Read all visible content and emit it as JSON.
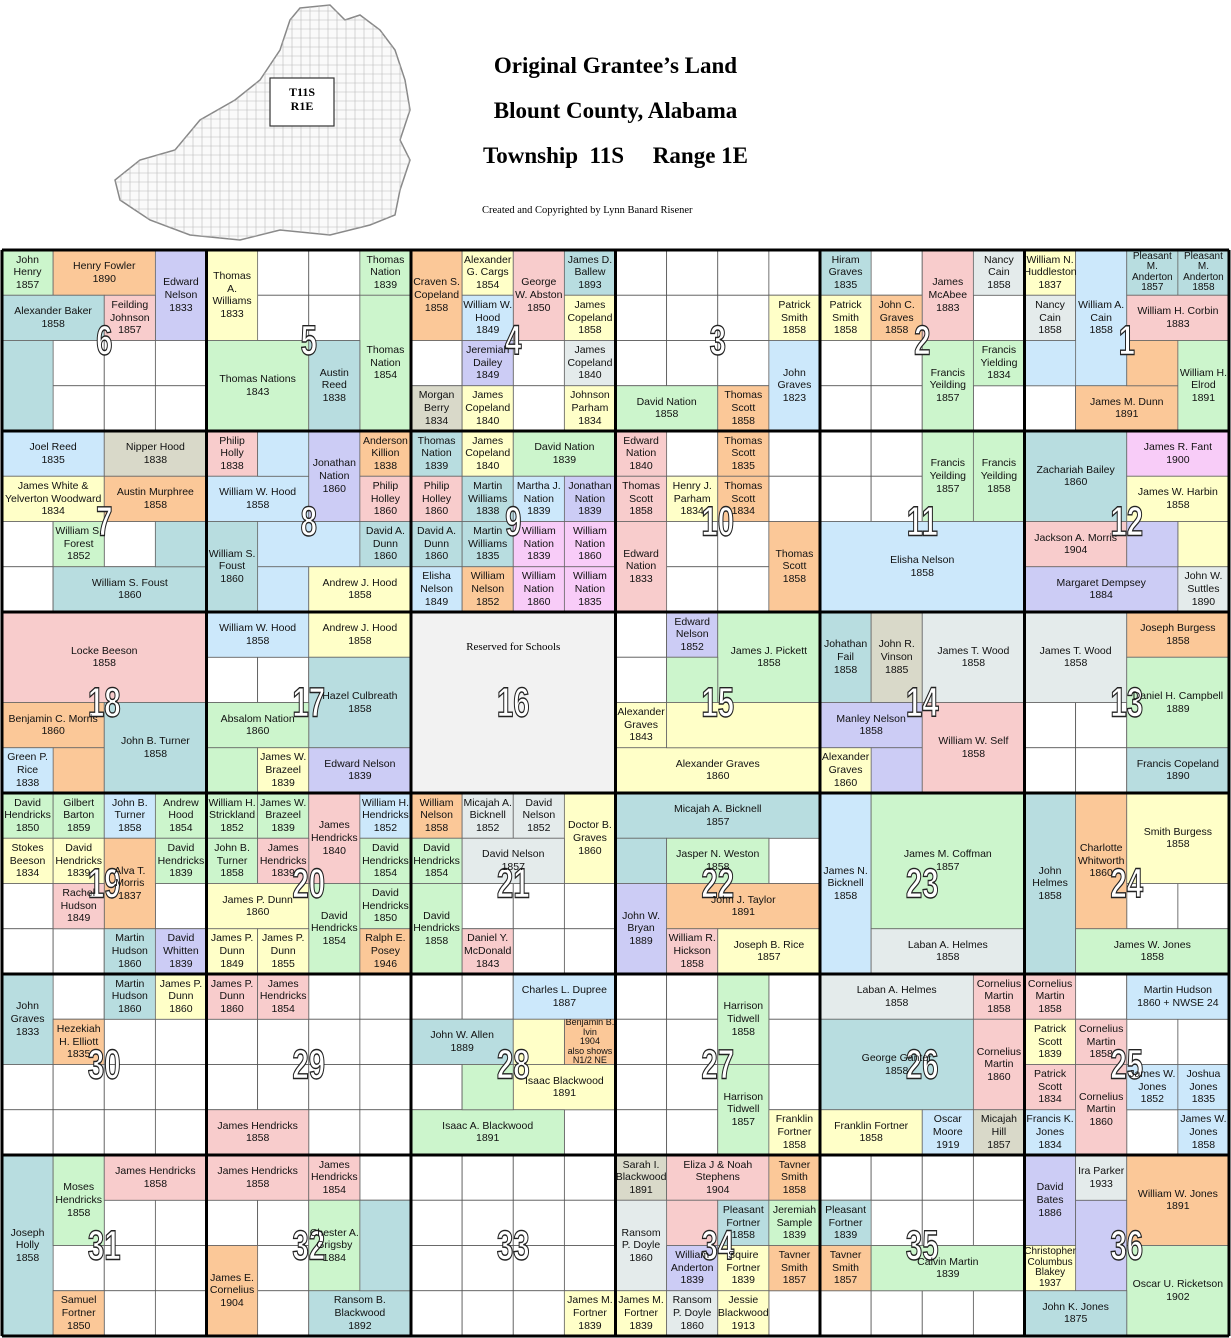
{
  "header": {
    "title_lines": [
      "Original Grantee’s Land",
      "Blount County, Alabama",
      "Township  11S     Range 1E"
    ],
    "credit": "Created and Copyrighted by Lynn Banard Risener",
    "inset_label": [
      "T11S",
      "R1E"
    ]
  },
  "sections": [
    6,
    5,
    4,
    3,
    2,
    1,
    7,
    8,
    9,
    10,
    11,
    12,
    18,
    17,
    16,
    15,
    14,
    13,
    19,
    20,
    21,
    22,
    23,
    24,
    30,
    29,
    28,
    27,
    26,
    25,
    31,
    32,
    33,
    34,
    35,
    36
  ],
  "school_note": "Reserved for Schools",
  "parcels": [
    [
      "John Henry",
      "1857"
    ],
    [
      "Henry Fowler",
      "1890"
    ],
    [
      "Edward Nelson",
      "1833"
    ],
    [
      "Alexander Baker",
      "1858"
    ],
    [
      "Feilding Johnson",
      "1857"
    ],
    [
      "Thomas A. Williams",
      "1833"
    ],
    [
      "Thomas Nation",
      "1839"
    ],
    [
      "Thomas Nation",
      "1854"
    ],
    [
      "Thomas Nations",
      "1843"
    ],
    [
      "Austin Reed",
      "1838"
    ],
    [
      "Craven S. Copeland",
      "1858"
    ],
    [
      "Alexander G. Cargs",
      "1854"
    ],
    [
      "George W. Abston",
      "1850"
    ],
    [
      "James D. Ballew",
      "1893"
    ],
    [
      "William W. Hood",
      "1849"
    ],
    [
      "James Copeland",
      "1858"
    ],
    [
      "Jeremiah Dailey",
      "1849"
    ],
    [
      "James Copeland",
      "1840"
    ],
    [
      "Morgan Berry",
      "1834"
    ],
    [
      "James Copeland",
      "1840"
    ],
    [
      "Johnson Parham",
      "1834"
    ],
    [
      "David Nation",
      "1858"
    ],
    [
      "Thomas Scott",
      "1858"
    ],
    [
      "Patrick Smith",
      "1858"
    ],
    [
      "John Graves",
      "1823"
    ],
    [
      "Hiram Graves",
      "1835"
    ],
    [
      "Patrick Smith",
      "1858"
    ],
    [
      "John C. Graves",
      "1858"
    ],
    [
      "James McAbee",
      "1883"
    ],
    [
      "Nancy Cain",
      "1858"
    ],
    [
      "Francis Yeilding",
      "1857"
    ],
    [
      "Francis Yielding",
      "1834"
    ],
    [
      "William N. Huddleston",
      "1837"
    ],
    [
      "Nancy Cain",
      "1858"
    ],
    [
      "William A. Cain",
      "1858"
    ],
    [
      "Pleasant M. Anderton",
      "1857"
    ],
    [
      "Pleasant M. Anderton",
      "1858"
    ],
    [
      "William H. Corbin",
      "1883"
    ],
    [
      "James M. Dunn",
      "1891"
    ],
    [
      "William H. Elrod",
      "1891"
    ],
    [
      "Joel Reed",
      "1835"
    ],
    [
      "Nipper Hood",
      "1838"
    ],
    [
      "James White & Yelverton Woodward",
      "1834"
    ],
    [
      "Austin Murphree",
      "1858"
    ],
    [
      "William S. Forest",
      "1852"
    ],
    [
      "William S. Foust",
      "1860"
    ],
    [
      "Philip Holly",
      "1838"
    ],
    [
      "William W. Hood",
      "1858"
    ],
    [
      "William S. Foust",
      "1860"
    ],
    [
      "Jonathan Nation",
      "1860"
    ],
    [
      "Anderson Killion",
      "1838"
    ],
    [
      "Philip Holley",
      "1860"
    ],
    [
      "David A. Dunn",
      "1860"
    ],
    [
      "Andrew J. Hood",
      "1858"
    ],
    [
      "Thomas Nation",
      "1839"
    ],
    [
      "James Copeland",
      "1840"
    ],
    [
      "David Nation",
      "1839"
    ],
    [
      "Philip Holley",
      "1860"
    ],
    [
      "Martin Williams",
      "1838"
    ],
    [
      "Martha J. Nation",
      "1839"
    ],
    [
      "Jonathan Nation",
      "1839"
    ],
    [
      "David A. Dunn",
      "1860"
    ],
    [
      "Martin Williams",
      "1835"
    ],
    [
      "William Nation",
      "1839"
    ],
    [
      "William Nation",
      "1860"
    ],
    [
      "Elisha Nelson",
      "1849"
    ],
    [
      "William Nelson",
      "1852"
    ],
    [
      "William Nation",
      "1860"
    ],
    [
      "William Nation",
      "1835"
    ],
    [
      "Edward Nation",
      "1840"
    ],
    [
      "Thomas Scott",
      "1835"
    ],
    [
      "Thomas Scott",
      "1858"
    ],
    [
      "Henry J. Parham",
      "1834"
    ],
    [
      "Thomas Scott",
      "1834"
    ],
    [
      "Edward Nation",
      "1833"
    ],
    [
      "Thomas Scott",
      "1858"
    ],
    [
      "Francis Yeilding",
      "1857"
    ],
    [
      "Francis Yeilding",
      "1858"
    ],
    [
      "Elisha Nelson",
      "1858"
    ],
    [
      "Zachariah Bailey",
      "1860"
    ],
    [
      "James R. Fant",
      "1900"
    ],
    [
      "James W. Harbin",
      "1858"
    ],
    [
      "Jackson A. Morris",
      "1904"
    ],
    [
      "Margaret Dempsey",
      "1884"
    ],
    [
      "John W. Suttles",
      "1890"
    ],
    [
      "Locke Beeson",
      "1858"
    ],
    [
      "Benjamin C. Morris",
      "1860"
    ],
    [
      "John B. Turner",
      "1858"
    ],
    [
      "Green P. Rice",
      "1838"
    ],
    [
      "William W. Hood",
      "1858"
    ],
    [
      "Andrew J. Hood",
      "1858"
    ],
    [
      "Hazel Culbreath",
      "1858"
    ],
    [
      "Absalom Nation",
      "1860"
    ],
    [
      "James W. Brazeel",
      "1839"
    ],
    [
      "Edward Nelson",
      "1839"
    ],
    [
      "Edward Nelson",
      "1852"
    ],
    [
      "James J. Pickett",
      "1858"
    ],
    [
      "Alexander Graves",
      "1843"
    ],
    [
      "Alexander Graves",
      "1860"
    ],
    [
      "Johathan Fail",
      "1858"
    ],
    [
      "John R. Vinson",
      "1885"
    ],
    [
      "James T. Wood",
      "1858"
    ],
    [
      "Manley Nelson",
      "1858"
    ],
    [
      "Alexander Graves",
      "1860"
    ],
    [
      "William W. Self",
      "1858"
    ],
    [
      "James T. Wood",
      "1858"
    ],
    [
      "Joseph Burgess",
      "1858"
    ],
    [
      "Daniel H. Campbell",
      "1889"
    ],
    [
      "Francis Copeland",
      "1890"
    ],
    [
      "David Hendricks",
      "1850"
    ],
    [
      "Gilbert Barton",
      "1859"
    ],
    [
      "John B. Turner",
      "1858"
    ],
    [
      "Andrew Hood",
      "1854"
    ],
    [
      "Stokes Beeson",
      "1834"
    ],
    [
      "David Hendricks",
      "1839"
    ],
    [
      "Alva T. Morris",
      "1837"
    ],
    [
      "David Hendricks",
      "1839"
    ],
    [
      "Rachel Hudson",
      "1849"
    ],
    [
      "Martin Hudson",
      "1860"
    ],
    [
      "David Whitten",
      "1839"
    ],
    [
      "William H. Strickland",
      "1852"
    ],
    [
      "James W. Brazeel",
      "1839"
    ],
    [
      "James Hendricks",
      "1840"
    ],
    [
      "William H. Hendricks",
      "1852"
    ],
    [
      "John B. Turner",
      "1858"
    ],
    [
      "James Hendricks",
      "1839"
    ],
    [
      "David Hendricks",
      "1854"
    ],
    [
      "James P. Dunn",
      "1860"
    ],
    [
      "David Hendricks",
      "1854"
    ],
    [
      "David Hendricks",
      "1850"
    ],
    [
      "James P. Dunn",
      "1849"
    ],
    [
      "James P. Dunn",
      "1855"
    ],
    [
      "Ralph E. Posey",
      "1946"
    ],
    [
      "William Nelson",
      "1858"
    ],
    [
      "Micajah A. Bicknell",
      "1852"
    ],
    [
      "David Nelson",
      "1852"
    ],
    [
      "Doctor B. Graves",
      "1860"
    ],
    [
      "David Hendricks",
      "1854"
    ],
    [
      "David Nelson",
      "1857"
    ],
    [
      "David Hendricks",
      "1858"
    ],
    [
      "Daniel Y. McDonald",
      "1843"
    ],
    [
      "Micajah A. Bicknell",
      "1857"
    ],
    [
      "Jasper N. Weston",
      "1858"
    ],
    [
      "John J. Taylor",
      "1891"
    ],
    [
      "John W. Bryan",
      "1889"
    ],
    [
      "William R. Hickson",
      "1858"
    ],
    [
      "Joseph B. Rice",
      "1857"
    ],
    [
      "James N. Bicknell",
      "1858"
    ],
    [
      "James M. Coffman",
      "1857"
    ],
    [
      "Laban A. Helmes",
      "1858"
    ],
    [
      "John Helmes",
      "1858"
    ],
    [
      "Charlotte Whitworth",
      "1860"
    ],
    [
      "Smith Burgess",
      "1858"
    ],
    [
      "James W. Jones",
      "1858"
    ],
    [
      "John Graves",
      "1833"
    ],
    [
      "Martin Hudson",
      "1860"
    ],
    [
      "James P. Dunn",
      "1860"
    ],
    [
      "Hezekiah H. Elliott",
      "1835"
    ],
    [
      "James P. Dunn",
      "1860"
    ],
    [
      "James Hendricks",
      "1854"
    ],
    [
      "James Hendricks",
      "1858"
    ],
    [
      "Charles L. Dupree",
      "1887"
    ],
    [
      "John W. Allen",
      "1889"
    ],
    [
      "Benjamin B. Ivin",
      "1904",
      "also shows N1/2 NE"
    ],
    [
      "Isaac Blackwood",
      "1891"
    ],
    [
      "Isaac A. Blackwood",
      "1891"
    ],
    [
      "Harrison Tidwell",
      "1858"
    ],
    [
      "Harrison Tidwell",
      "1857"
    ],
    [
      "Franklin Fortner",
      "1858"
    ],
    [
      "Laban A. Helmes",
      "1858"
    ],
    [
      "George Ganter",
      "1858"
    ],
    [
      "Cornelius Martin",
      "1858"
    ],
    [
      "Cornelius Martin",
      "1860"
    ],
    [
      "Franklin Fortner",
      "1858"
    ],
    [
      "Oscar Moore",
      "1919"
    ],
    [
      "Micajah Hill",
      "1857"
    ],
    [
      "Cornelius Martin",
      "1858"
    ],
    [
      "Martin Hudson",
      "1860 + NWSE 24"
    ],
    [
      "Patrick Scott",
      "1839"
    ],
    [
      "Cornelius Martin",
      "1858"
    ],
    [
      "Patrick Scott",
      "1834"
    ],
    [
      "Cornelius Martin",
      "1860"
    ],
    [
      "James W. Jones",
      "1852"
    ],
    [
      "Joshua Jones",
      "1835"
    ],
    [
      "Francis K. Jones",
      "1834"
    ],
    [
      "James W. Jones",
      "1858"
    ],
    [
      "Joseph Holly",
      "1858"
    ],
    [
      "Moses Hendricks",
      "1858"
    ],
    [
      "James Hendricks",
      "1858"
    ],
    [
      "Samuel Fortner",
      "1850"
    ],
    [
      "James Hendricks",
      "1858"
    ],
    [
      "James Hendricks",
      "1854"
    ],
    [
      "Chester A. Grigsby",
      "1884"
    ],
    [
      "James E. Cornelius",
      "1904"
    ],
    [
      "Ransom B. Blackwood",
      "1892"
    ],
    [
      "James M. Fortner",
      "1839"
    ],
    [
      "Sarah I. Blackwood",
      "1891"
    ],
    [
      "Eliza J & Noah Stephens",
      "1904"
    ],
    [
      "Tavner Smith",
      "1858"
    ],
    [
      "Ransom P. Doyle",
      "1860"
    ],
    [
      "Pleasant Fortner",
      "1858"
    ],
    [
      "Jeremiah Sample",
      "1839"
    ],
    [
      "William Anderton",
      "1839"
    ],
    [
      "Squire Fortner",
      "1839"
    ],
    [
      "Tavner Smith",
      "1857"
    ],
    [
      "James M. Fortner",
      "1839"
    ],
    [
      "Ransom P. Doyle",
      "1860"
    ],
    [
      "Jessie Blackwood",
      "1913"
    ],
    [
      "Pleasant Fortner",
      "1839"
    ],
    [
      "Tavner Smith",
      "1857"
    ],
    [
      "Calvin Martin",
      "1839"
    ],
    [
      "David Bates",
      "1886"
    ],
    [
      "Ira Parker",
      "1933"
    ],
    [
      "William W. Jones",
      "1891"
    ],
    [
      "Christopher Columbus Blakey",
      "1937"
    ],
    [
      "Oscar U. Ricketson",
      "1902"
    ],
    [
      "John K. Jones",
      "1875"
    ]
  ]
}
